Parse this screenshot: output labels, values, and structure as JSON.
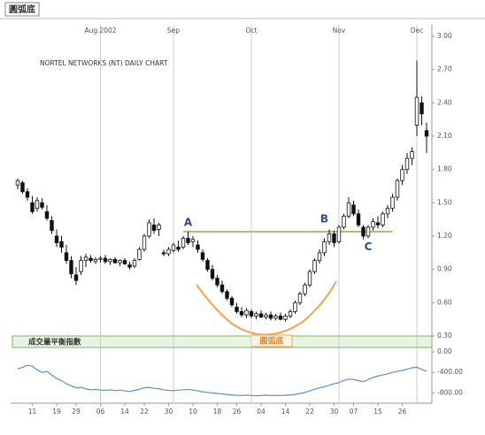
{
  "chart_data": {
    "type": "candlestick",
    "title": "圓弧底",
    "subtitle": "NORTEL NETWORKS (NT) DAILY CHART",
    "pattern_label": "圓弧底",
    "annotations": [
      "A",
      "B",
      "C"
    ],
    "neckline": 1.24,
    "categories": [
      null,
      null,
      null,
      "11",
      null,
      null,
      null,
      null,
      "19",
      null,
      null,
      null,
      "29",
      null,
      null,
      null,
      null,
      "06",
      null,
      null,
      null,
      null,
      "14",
      null,
      null,
      null,
      "22",
      null,
      null,
      null,
      null,
      "30",
      null,
      null,
      null,
      null,
      "10",
      null,
      null,
      null,
      null,
      "18",
      null,
      null,
      null,
      "26",
      null,
      null,
      null,
      null,
      "04",
      null,
      null,
      null,
      null,
      "14",
      null,
      null,
      null,
      null,
      "22",
      null,
      null,
      null,
      null,
      "30",
      null,
      null,
      null,
      "07",
      null,
      null,
      null,
      null,
      "15",
      null,
      null,
      null,
      null,
      "26",
      null,
      null,
      null,
      null,
      null
    ],
    "months": [
      null,
      null,
      null,
      null,
      null,
      null,
      null,
      null,
      null,
      null,
      null,
      null,
      null,
      null,
      null,
      null,
      null,
      "Aug.2002",
      null,
      null,
      null,
      null,
      null,
      null,
      null,
      null,
      null,
      null,
      null,
      null,
      null,
      null,
      "Sep",
      null,
      null,
      null,
      null,
      null,
      null,
      null,
      null,
      null,
      null,
      null,
      null,
      null,
      null,
      null,
      "Oct",
      null,
      null,
      null,
      null,
      null,
      null,
      null,
      null,
      null,
      null,
      null,
      null,
      null,
      null,
      null,
      null,
      null,
      "Nov",
      null,
      null,
      null,
      null,
      null,
      null,
      null,
      null,
      null,
      null,
      null,
      null,
      null,
      null,
      null,
      "Dec",
      null,
      null
    ],
    "ohlc": [
      [
        1.66,
        1.72,
        1.62,
        1.7
      ],
      [
        1.68,
        1.7,
        1.58,
        1.6
      ],
      [
        1.6,
        1.63,
        1.52,
        1.55
      ],
      [
        1.5,
        1.56,
        1.4,
        1.42
      ],
      [
        1.45,
        1.55,
        1.42,
        1.52
      ],
      [
        1.5,
        1.54,
        1.44,
        1.46
      ],
      [
        1.42,
        1.48,
        1.34,
        1.36
      ],
      [
        1.34,
        1.38,
        1.22,
        1.25
      ],
      [
        1.2,
        1.26,
        1.1,
        1.14
      ],
      [
        1.15,
        1.2,
        1.05,
        1.1
      ],
      [
        1.05,
        1.12,
        0.95,
        0.98
      ],
      [
        0.98,
        1.02,
        0.82,
        0.86
      ],
      [
        0.85,
        0.92,
        0.76,
        0.8
      ],
      [
        0.88,
        1.02,
        0.85,
        0.98
      ],
      [
        0.98,
        1.04,
        0.92,
        1.01
      ],
      [
        1.0,
        1.03,
        0.96,
        0.98
      ],
      [
        0.97,
        1.01,
        0.95,
        0.99
      ],
      [
        0.99,
        1.02,
        0.96,
        1.0
      ],
      [
        1.0,
        1.03,
        0.95,
        0.97
      ],
      [
        0.97,
        1.0,
        0.94,
        0.99
      ],
      [
        0.99,
        1.01,
        0.95,
        0.96
      ],
      [
        0.96,
        0.99,
        0.93,
        0.98
      ],
      [
        0.98,
        1.0,
        0.94,
        0.95
      ],
      [
        0.94,
        0.97,
        0.9,
        0.92
      ],
      [
        0.93,
        1.0,
        0.91,
        0.98
      ],
      [
        0.99,
        1.1,
        0.98,
        1.08
      ],
      [
        1.08,
        1.22,
        1.06,
        1.2
      ],
      [
        1.2,
        1.35,
        1.18,
        1.32
      ],
      [
        1.3,
        1.36,
        1.22,
        1.25
      ],
      [
        1.26,
        1.32,
        1.2,
        1.3
      ],
      [
        1.05,
        1.08,
        1.02,
        1.04
      ],
      [
        1.04,
        1.1,
        1.02,
        1.08
      ],
      [
        1.07,
        1.14,
        1.05,
        1.12
      ],
      [
        1.1,
        1.16,
        1.06,
        1.08
      ],
      [
        1.1,
        1.2,
        1.08,
        1.18
      ],
      [
        1.18,
        1.24,
        1.12,
        1.14
      ],
      [
        1.15,
        1.2,
        1.1,
        1.17
      ],
      [
        1.12,
        1.16,
        1.05,
        1.08
      ],
      [
        1.05,
        1.08,
        0.97,
        0.99
      ],
      [
        0.98,
        1.0,
        0.88,
        0.9
      ],
      [
        0.9,
        0.94,
        0.8,
        0.82
      ],
      [
        0.82,
        0.85,
        0.74,
        0.76
      ],
      [
        0.76,
        0.8,
        0.68,
        0.7
      ],
      [
        0.7,
        0.72,
        0.62,
        0.64
      ],
      [
        0.64,
        0.66,
        0.56,
        0.58
      ],
      [
        0.56,
        0.6,
        0.5,
        0.52
      ],
      [
        0.52,
        0.56,
        0.47,
        0.49
      ],
      [
        0.49,
        0.55,
        0.46,
        0.53
      ],
      [
        0.52,
        0.54,
        0.46,
        0.48
      ],
      [
        0.48,
        0.52,
        0.45,
        0.5
      ],
      [
        0.5,
        0.53,
        0.46,
        0.47
      ],
      [
        0.47,
        0.51,
        0.45,
        0.49
      ],
      [
        0.49,
        0.52,
        0.44,
        0.46
      ],
      [
        0.46,
        0.5,
        0.44,
        0.48
      ],
      [
        0.48,
        0.51,
        0.44,
        0.45
      ],
      [
        0.45,
        0.5,
        0.43,
        0.48
      ],
      [
        0.48,
        0.54,
        0.46,
        0.52
      ],
      [
        0.52,
        0.62,
        0.5,
        0.6
      ],
      [
        0.6,
        0.7,
        0.58,
        0.68
      ],
      [
        0.68,
        0.78,
        0.66,
        0.76
      ],
      [
        0.76,
        0.9,
        0.74,
        0.88
      ],
      [
        0.88,
        1.0,
        0.86,
        0.98
      ],
      [
        0.98,
        1.08,
        0.95,
        1.05
      ],
      [
        1.05,
        1.18,
        1.02,
        1.15
      ],
      [
        1.15,
        1.26,
        1.12,
        1.22
      ],
      [
        1.22,
        1.25,
        1.1,
        1.14
      ],
      [
        1.15,
        1.3,
        1.13,
        1.28
      ],
      [
        1.28,
        1.4,
        1.26,
        1.38
      ],
      [
        1.38,
        1.55,
        1.36,
        1.5
      ],
      [
        1.48,
        1.52,
        1.38,
        1.4
      ],
      [
        1.4,
        1.44,
        1.28,
        1.3
      ],
      [
        1.28,
        1.3,
        1.17,
        1.2
      ],
      [
        1.2,
        1.3,
        1.18,
        1.28
      ],
      [
        1.28,
        1.36,
        1.25,
        1.33
      ],
      [
        1.32,
        1.38,
        1.27,
        1.3
      ],
      [
        1.3,
        1.42,
        1.28,
        1.4
      ],
      [
        1.4,
        1.48,
        1.36,
        1.45
      ],
      [
        1.45,
        1.58,
        1.42,
        1.55
      ],
      [
        1.55,
        1.72,
        1.52,
        1.7
      ],
      [
        1.7,
        1.84,
        1.66,
        1.8
      ],
      [
        1.8,
        1.95,
        1.76,
        1.9
      ],
      [
        1.9,
        2.0,
        1.84,
        1.96
      ],
      [
        2.2,
        2.78,
        2.1,
        2.45
      ],
      [
        2.4,
        2.46,
        2.2,
        2.3
      ],
      [
        2.15,
        2.22,
        1.95,
        2.1
      ]
    ],
    "ylim": [
      0.3,
      3.0
    ],
    "yticks": [
      {
        "value": 3,
        "label": "3.00"
      },
      {
        "value": 2.7,
        "label": "2.70"
      },
      {
        "value": 2.4,
        "label": "2.40"
      },
      {
        "value": 2.1,
        "label": "2.10"
      },
      {
        "value": 1.8,
        "label": "1.80"
      },
      {
        "value": 1.5,
        "label": "1.50"
      },
      {
        "value": 1.2,
        "label": "1.20"
      },
      {
        "value": 0.9,
        "label": "0.90"
      },
      {
        "value": 0.6,
        "label": "0.60"
      },
      {
        "value": 0.3,
        "label": "0.30"
      }
    ],
    "indicator": {
      "name": "成交量平衡指數",
      "color": "#5b8fd6",
      "values": [
        -330,
        -300,
        -260,
        -280,
        -350,
        -400,
        -380,
        -450,
        -520,
        -560,
        -620,
        -660,
        -700,
        -690,
        -720,
        -740,
        -730,
        -745,
        -750,
        -740,
        -755,
        -745,
        -760,
        -770,
        -750,
        -730,
        -700,
        -690,
        -710,
        -720,
        -740,
        -750,
        -755,
        -745,
        -740,
        -730,
        -745,
        -760,
        -780,
        -790,
        -800,
        -810,
        -820,
        -830,
        -840,
        -845,
        -850,
        -845,
        -850,
        -855,
        -850,
        -845,
        -850,
        -848,
        -852,
        -845,
        -840,
        -830,
        -810,
        -790,
        -760,
        -730,
        -700,
        -680,
        -650,
        -620,
        -600,
        -560,
        -530,
        -540,
        -560,
        -580,
        -540,
        -500,
        -470,
        -450,
        -430,
        -400,
        -380,
        -360,
        -340,
        -310,
        -300,
        -340,
        -380
      ],
      "ylim": [
        -1000,
        0
      ],
      "yticks": [
        {
          "value": 0,
          "label": "0.00"
        },
        {
          "value": -400,
          "label": "-400.00"
        },
        {
          "value": -800,
          "label": "-800.00"
        }
      ]
    }
  }
}
